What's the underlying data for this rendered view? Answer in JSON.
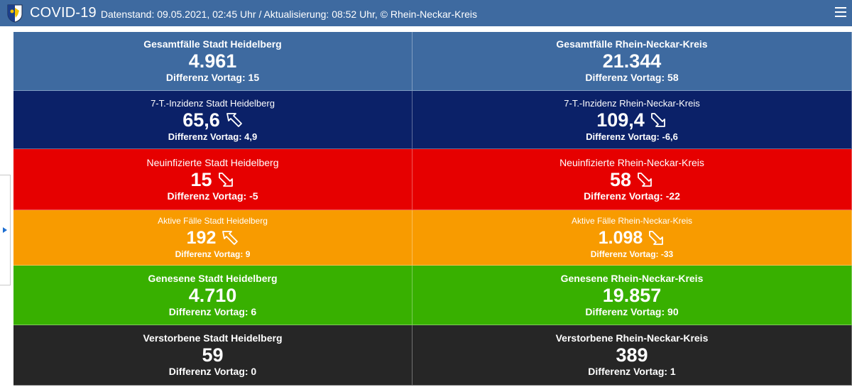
{
  "header": {
    "app_title": "COVID-19",
    "subtitle": "Datenstand: 09.05.2021, 02:45 Uhr / Aktualisierung: 08:52 Uhr, © Rhein-Neckar-Kreis",
    "menu_icon": "hamburger-menu-icon",
    "logo_icon": "coat-of-arms-icon"
  },
  "colors": {
    "header": "#3e6aa0",
    "total": "#3e6aa0",
    "incidence": "#0b2168",
    "new": "#e60000",
    "active": "#f89b00",
    "recovered": "#38b000",
    "deaths": "#262626"
  },
  "tiles": {
    "total_hd": {
      "label": "Gesamtfälle Stadt Heidelberg",
      "value": "4.961",
      "diff": "Differenz Vortag: 15"
    },
    "total_rnk": {
      "label": "Gesamtfälle Rhein-Neckar-Kreis",
      "value": "21.344",
      "diff": "Differenz Vortag: 58"
    },
    "incidence_hd": {
      "label": "7-T.-Inzidenz Stadt Heidelberg",
      "value": "65,6",
      "diff": "Differenz Vortag: 4,9",
      "trend": "up"
    },
    "incidence_rnk": {
      "label": "7-T.-Inzidenz Rhein-Neckar-Kreis",
      "value": "109,4",
      "diff": "Differenz Vortag: -6,6",
      "trend": "down"
    },
    "new_hd": {
      "label": "Neuinfizierte Stadt Heidelberg",
      "value": "15",
      "diff": "Differenz Vortag: -5",
      "trend": "down"
    },
    "new_rnk": {
      "label": "Neuinfizierte Rhein-Neckar-Kreis",
      "value": "58",
      "diff": "Differenz Vortag: -22",
      "trend": "down"
    },
    "active_hd": {
      "label": "Aktive Fälle Stadt Heidelberg",
      "value": "192",
      "diff": "Differenz Vortag: 9",
      "trend": "up"
    },
    "active_rnk": {
      "label": "Aktive Fälle Rhein-Neckar-Kreis",
      "value": "1.098",
      "diff": "Differenz Vortag: -33",
      "trend": "down"
    },
    "recovered_hd": {
      "label": "Genesene Stadt Heidelberg",
      "value": "4.710",
      "diff": "Differenz Vortag: 6"
    },
    "recovered_rnk": {
      "label": "Genesene Rhein-Neckar-Kreis",
      "value": "19.857",
      "diff": "Differenz Vortag: 90"
    },
    "deaths_hd": {
      "label": "Verstorbene Stadt Heidelberg",
      "value": "59",
      "diff": "Differenz Vortag: 0"
    },
    "deaths_rnk": {
      "label": "Verstorbene Rhein-Neckar-Kreis",
      "value": "389",
      "diff": "Differenz Vortag: 1"
    }
  }
}
